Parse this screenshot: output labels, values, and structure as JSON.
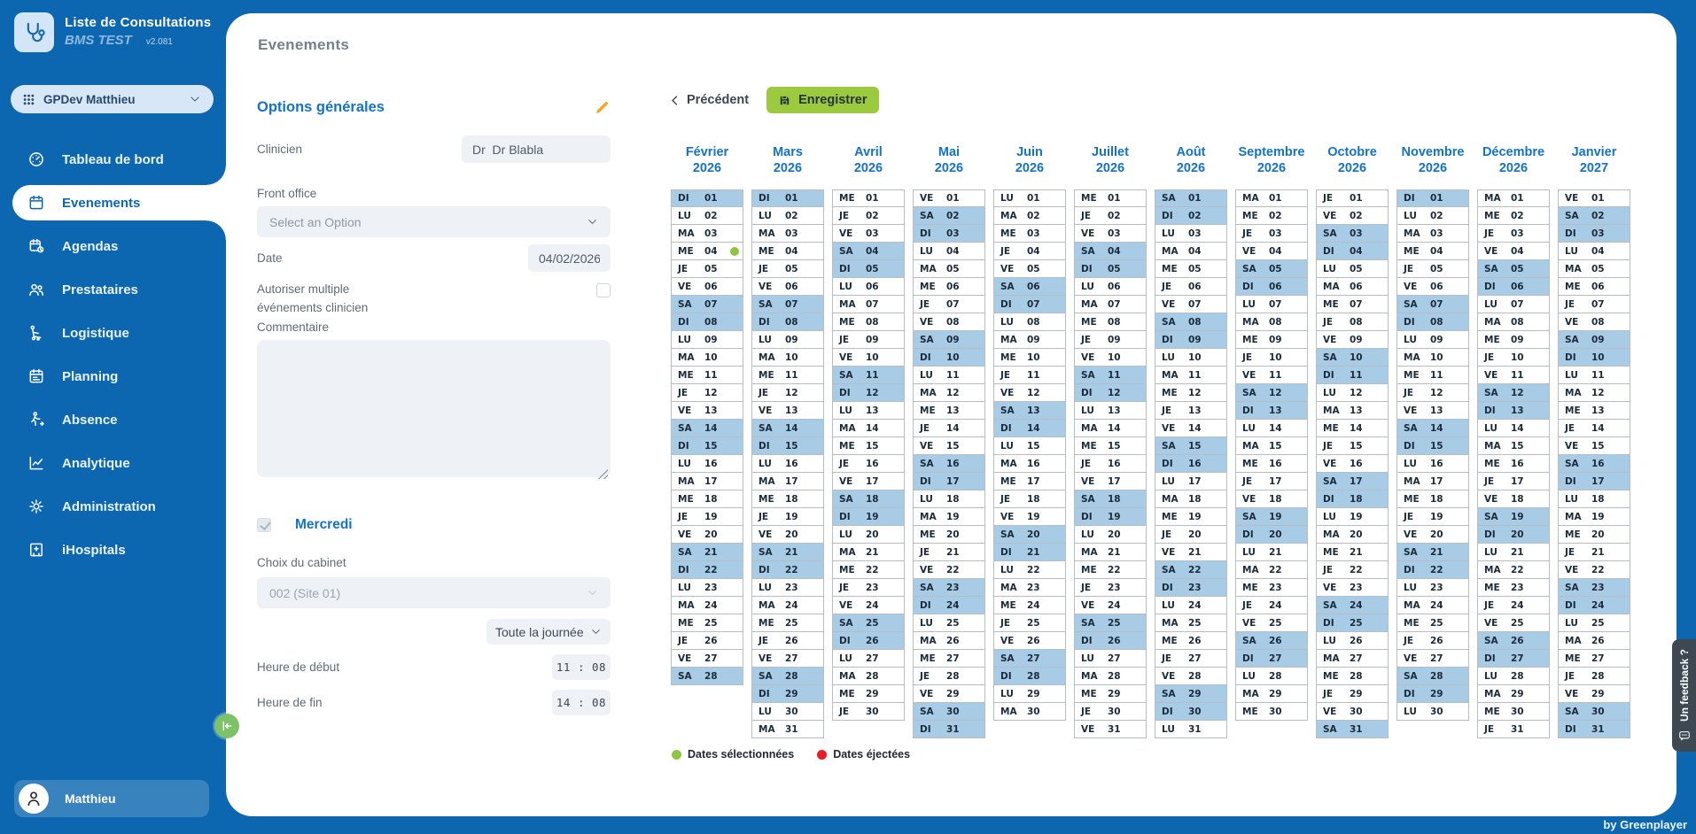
{
  "app": {
    "title": "Liste de Consultations",
    "subtitle": "BMS TEST",
    "version": "v2.081",
    "byline": "by Greenplayer",
    "feedback_label": "Un feedback ?"
  },
  "sidebar": {
    "workspace": "GPDev Matthieu",
    "items": [
      {
        "label": "Tableau de bord",
        "icon": "gauge-icon",
        "active": false
      },
      {
        "label": "Evenements",
        "icon": "calendar-icon",
        "active": true
      },
      {
        "label": "Agendas",
        "icon": "calendar-clock-icon",
        "active": false
      },
      {
        "label": "Prestataires",
        "icon": "people-icon",
        "active": false
      },
      {
        "label": "Logistique",
        "icon": "logistics-icon",
        "active": false
      },
      {
        "label": "Planning",
        "icon": "planning-icon",
        "active": false
      },
      {
        "label": "Absence",
        "icon": "person-walking-icon",
        "active": false
      },
      {
        "label": "Analytique",
        "icon": "chart-icon",
        "active": false
      },
      {
        "label": "Administration",
        "icon": "gear-icon",
        "active": false
      },
      {
        "label": "iHospitals",
        "icon": "hospital-icon",
        "active": false
      }
    ],
    "user": "Matthieu"
  },
  "page": {
    "title": "Evenements"
  },
  "toolbar": {
    "previous_label": "Précédent",
    "save_label": "Enregistrer"
  },
  "form": {
    "section_title": "Options générales",
    "clinician_label": "Clinicien",
    "clinician_value": "Dr  Dr Blabla",
    "front_office_label": "Front office",
    "front_office_value": "Select an Option",
    "date_label": "Date",
    "date_value": "04/02/2026",
    "multi_event_label": "Autoriser multiple événements clinicien",
    "multi_event_checked": false,
    "comment_label": "Commentaire",
    "comment_value": "",
    "weekday_label": "Mercredi",
    "weekday_checked": true,
    "cabinet_label": "Choix du cabinet",
    "cabinet_value": "002 (Site 01)",
    "allday_value": "Toute la journée",
    "start_label": "Heure de début",
    "start_value": "11 : 08",
    "end_label": "Heure de fin",
    "end_value": "14 : 08"
  },
  "calendar": {
    "dow_labels": [
      "DI",
      "LU",
      "MA",
      "ME",
      "JE",
      "VE",
      "SA"
    ],
    "weekend_days": [
      "DI",
      "SA"
    ],
    "months": [
      {
        "name": "Février",
        "year": "2026",
        "days": 28,
        "first_dow": 0
      },
      {
        "name": "Mars",
        "year": "2026",
        "days": 31,
        "first_dow": 0
      },
      {
        "name": "Avril",
        "year": "2026",
        "days": 30,
        "first_dow": 3
      },
      {
        "name": "Mai",
        "year": "2026",
        "days": 31,
        "first_dow": 5
      },
      {
        "name": "Juin",
        "year": "2026",
        "days": 30,
        "first_dow": 1
      },
      {
        "name": "Juillet",
        "year": "2026",
        "days": 31,
        "first_dow": 3
      },
      {
        "name": "Août",
        "year": "2026",
        "days": 31,
        "first_dow": 6
      },
      {
        "name": "Septembre",
        "year": "2026",
        "days": 30,
        "first_dow": 2
      },
      {
        "name": "Octobre",
        "year": "2026",
        "days": 31,
        "first_dow": 4
      },
      {
        "name": "Novembre",
        "year": "2026",
        "days": 30,
        "first_dow": 0
      },
      {
        "name": "Décembre",
        "year": "2026",
        "days": 31,
        "first_dow": 2
      },
      {
        "name": "Janvier",
        "year": "2027",
        "days": 31,
        "first_dow": 5
      }
    ],
    "selected_marks": [
      {
        "month_index": 0,
        "day": 4
      }
    ],
    "ejected_marks": [],
    "legend": [
      {
        "label": "Dates sélectionnées",
        "color": "#8dc63f"
      },
      {
        "label": "Dates éjectées",
        "color": "#ed1c24"
      }
    ]
  },
  "colors": {
    "primary_blue": "#0d67b0",
    "heading_blue": "#1373c9",
    "weekend_blue": "#a9cce6",
    "save_green": "#9bca3e",
    "selected_green": "#8dc63f",
    "ejected_red": "#ed1c24",
    "pencil_orange": "#f6a51c",
    "feedback_gray": "#3d4852"
  }
}
